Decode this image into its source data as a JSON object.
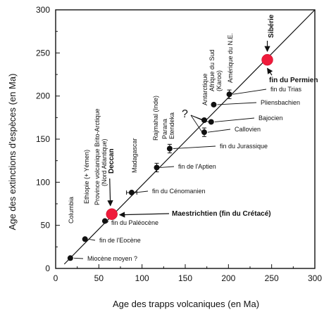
{
  "chart_data": {
    "type": "scatter",
    "title": "",
    "xlabel": "Age des trapps volcaniques  (en Ma)",
    "ylabel": "Age des extinctions d'espèces  (en Ma)",
    "xlim": [
      0,
      300
    ],
    "ylim": [
      0,
      300
    ],
    "x_ticks": [
      "0",
      "50",
      "100",
      "150",
      "200",
      "250",
      "300"
    ],
    "y_ticks": [
      "0",
      "50",
      "100",
      "150",
      "200",
      "250",
      "300"
    ],
    "grid": false,
    "trend_line": "1:1",
    "trapps": [
      {
        "name": "Columbia",
        "x": 17,
        "y": 12
      },
      {
        "name": "Ethiopie (+ Yémen)",
        "x": 34,
        "y": 34
      },
      {
        "name": "Province volcanique Brito-Arctique (Nord Atlantique)",
        "x": 57,
        "y": 55
      },
      {
        "name": "Deccan",
        "x": 65,
        "y": 63,
        "bold": true
      },
      {
        "name": "Madagascar",
        "x": 88,
        "y": 88
      },
      {
        "name": "Rajmahal (Inde)",
        "x": 117,
        "y": 117
      },
      {
        "name": "Parana Etendeka",
        "x": 132,
        "y": 137
      },
      {
        "name": "Antarctique",
        "x": 172,
        "y": 170
      },
      {
        "name": "Afrique du Sud (Karoo)",
        "x": 183,
        "y": 190
      },
      {
        "name": "Amérique du N.E.",
        "x": 201,
        "y": 202
      },
      {
        "name": "Sibérie",
        "x": 245,
        "y": 242,
        "bold": true
      }
    ],
    "extinctions": [
      {
        "label": "Miocène moyen  ?",
        "x": 17,
        "y": 12
      },
      {
        "label": "fin de l'Eocène",
        "x": 34,
        "y": 34
      },
      {
        "label": "fin du Paléocène",
        "x": 57,
        "y": 55
      },
      {
        "label": "Maestrichtien  (fin du Crétacé)",
        "x": 65,
        "y": 63,
        "bold": true,
        "highlight": true
      },
      {
        "label": "fin du Cénomanien",
        "x": 88,
        "y": 88,
        "xerr": 6
      },
      {
        "label": "fin de  l'Aptien",
        "x": 117,
        "y": 117,
        "yerr": 5
      },
      {
        "label": "fin du Jurassique",
        "x": 132,
        "y": 139,
        "yerr": 5
      },
      {
        "label": "Callovien",
        "x": 172,
        "y": 158,
        "yerr": 5
      },
      {
        "label": "Bajocien",
        "x": 180,
        "y": 170
      },
      {
        "label": "",
        "x": 172,
        "y": 172
      },
      {
        "label": "Pliensbachien",
        "x": 183,
        "y": 190
      },
      {
        "label": "fin du Trias",
        "x": 201,
        "y": 202,
        "yerr": 5
      },
      {
        "label": "fin du Permien",
        "x": 245,
        "y": 242,
        "bold": true,
        "highlight": true
      }
    ],
    "annotations": [
      "?"
    ]
  }
}
